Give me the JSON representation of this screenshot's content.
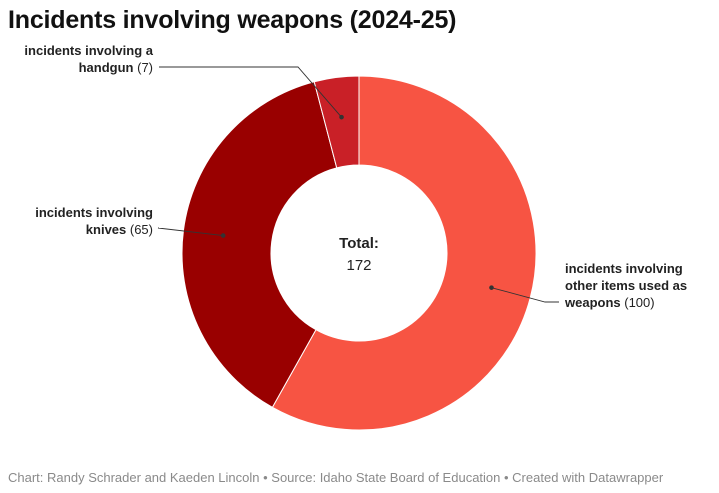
{
  "page": {
    "title": "Incidents involving weapons (2024-25)",
    "footer": {
      "chart_by": "Chart: Randy Schrader and Kaeden Lincoln",
      "source": "Source: Idaho State Board of Education",
      "created_with": "Created with Datawrapper",
      "separator": " • "
    }
  },
  "chart_data": {
    "type": "pie",
    "variant": "donut",
    "title": "Incidents involving weapons (2024-25)",
    "total_label": "Total:",
    "total_value": "172",
    "slices": [
      {
        "label_lines": [
          "incidents involving",
          "other items used as",
          "weapons"
        ],
        "value": 100,
        "value_text": "(100)",
        "color": "#f75443"
      },
      {
        "label_lines": [
          "incidents involving",
          "knives"
        ],
        "value": 65,
        "value_text": "(65)",
        "color": "#990000"
      },
      {
        "label_lines": [
          "incidents involving a",
          "handgun"
        ],
        "value": 7,
        "value_text": "(7)",
        "color": "#c92027"
      }
    ]
  }
}
